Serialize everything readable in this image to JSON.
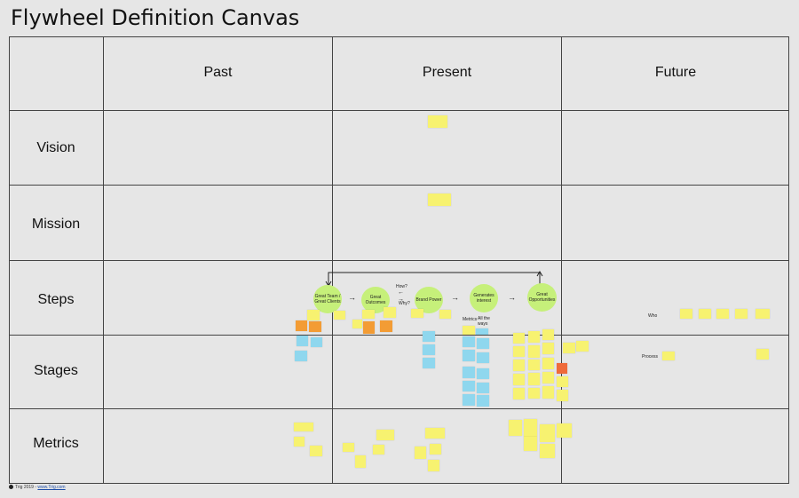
{
  "canvas": {
    "title": "Flywheel Definition Canvas"
  },
  "columns": [
    "Past",
    "Present",
    "Future"
  ],
  "rows": [
    "Vision",
    "Mission",
    "Steps",
    "Stages",
    "Metrics"
  ],
  "steps": {
    "circles": [
      "Great Team / Great Clients",
      "Great Outcomes",
      "Brand Power",
      "Generates interest",
      "Great Opportunities"
    ],
    "how_label": "How?",
    "why_label": "Why?",
    "metrics_label": "Metrics",
    "all_the_ways_label": "All the ways"
  },
  "future_labels": {
    "who": "Who",
    "process": "Process"
  },
  "footer": {
    "prefix": "Trig 2019 - ",
    "link": "www.Trig.com"
  },
  "colors": {
    "note_yellow": "#f7f270",
    "note_blue": "#8fd7ee",
    "note_orange": "#f39c34",
    "note_red": "#ef6a3a",
    "circle_green": "#c6f07a"
  }
}
